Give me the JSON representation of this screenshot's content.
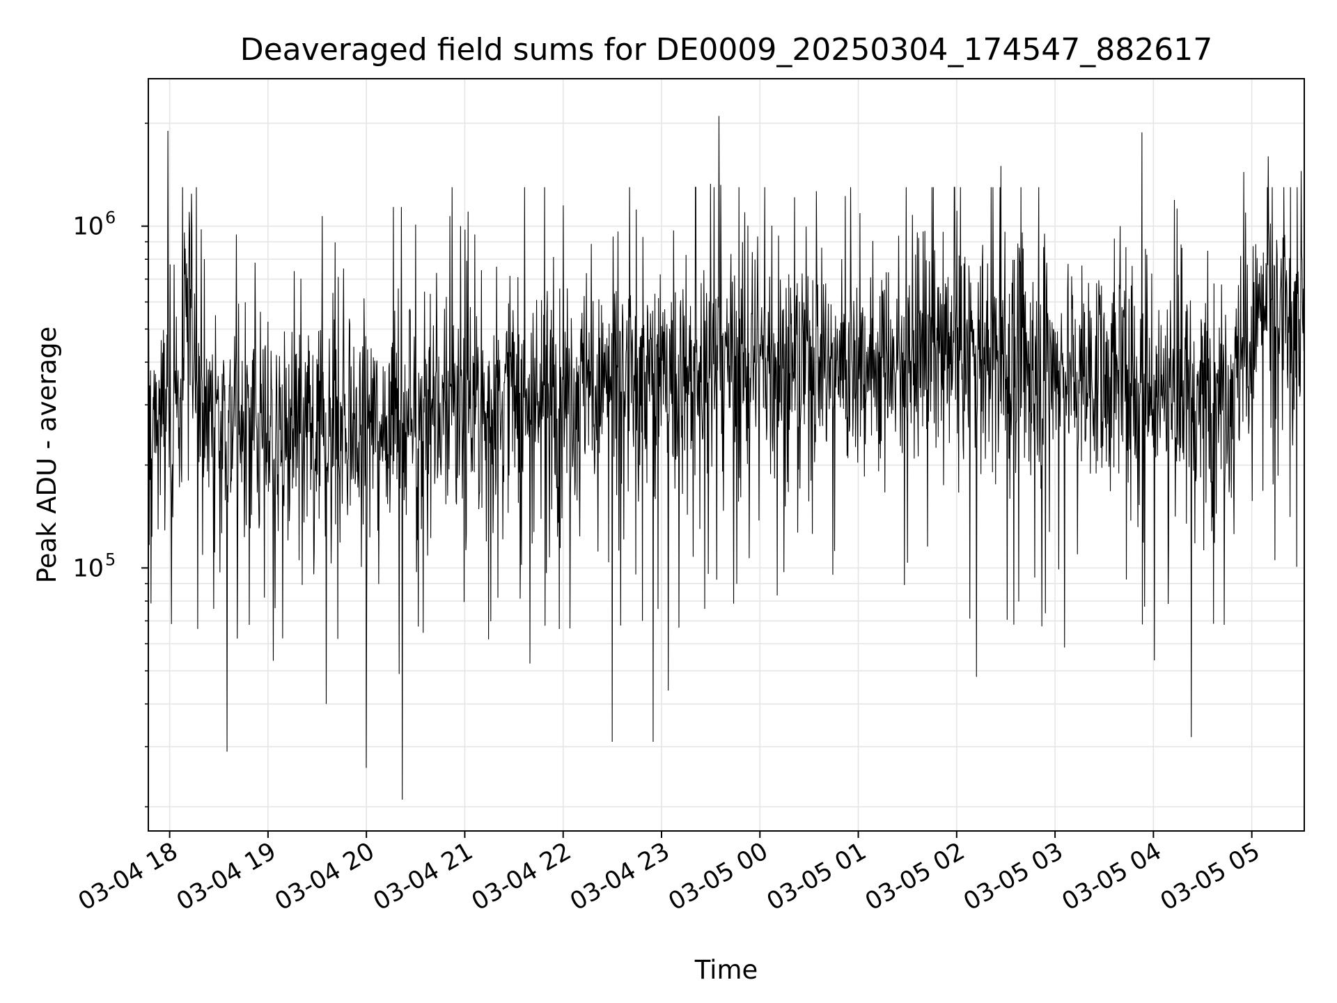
{
  "chart_data": {
    "type": "line",
    "title": "Deaveraged field sums for DE0009_20250304_174547_882617",
    "xlabel": "Time",
    "ylabel": "Peak ADU - average",
    "yscale": "log",
    "ylim": [
      17000,
      2700000
    ],
    "xlim": [
      "03-04 17:47",
      "03-05 05:32"
    ],
    "grid": true,
    "legend": "none",
    "line_color": "#000000",
    "y_ticks": [
      {
        "base": "10",
        "exp": "5",
        "value": 100000
      },
      {
        "base": "10",
        "exp": "6",
        "value": 1000000
      }
    ],
    "x_ticks": [
      "03-04 18",
      "03-04 19",
      "03-04 20",
      "03-04 21",
      "03-04 22",
      "03-04 23",
      "03-05 00",
      "03-05 01",
      "03-05 02",
      "03-05 03",
      "03-05 04",
      "03-05 05"
    ],
    "series": [
      {
        "values_note": "",
        "x_start": "03-04 17:47",
        "x_end": "03-05 05:32",
        "baseline_points": [
          {
            "x": "03-04 17:47",
            "y": 260000
          },
          {
            "x": "03-04 18:05",
            "y": 280000
          },
          {
            "x": "03-04 18:12",
            "y": 560000
          },
          {
            "x": "03-04 18:20",
            "y": 300000
          },
          {
            "x": "03-04 19:00",
            "y": 240000
          },
          {
            "x": "03-04 20:00",
            "y": 270000
          },
          {
            "x": "03-04 21:00",
            "y": 290000
          },
          {
            "x": "03-04 22:00",
            "y": 330000
          },
          {
            "x": "03-04 23:00",
            "y": 360000
          },
          {
            "x": "03-05 00:00",
            "y": 390000
          },
          {
            "x": "03-05 01:00",
            "y": 410000
          },
          {
            "x": "03-05 02:00",
            "y": 430000
          },
          {
            "x": "03-05 03:00",
            "y": 390000
          },
          {
            "x": "03-05 04:00",
            "y": 340000
          },
          {
            "x": "03-05 04:50",
            "y": 340000
          },
          {
            "x": "03-05 05:05",
            "y": 560000
          },
          {
            "x": "03-05 05:32",
            "y": 500000
          }
        ],
        "spikes": [
          {
            "x": "03-04 17:59",
            "y": 1900000
          },
          {
            "x": "03-04 18:12",
            "y": 1100000
          },
          {
            "x": "03-04 18:35",
            "y": 29000
          },
          {
            "x": "03-04 19:33",
            "y": 1070000
          },
          {
            "x": "03-04 20:00",
            "y": 26000
          },
          {
            "x": "03-04 20:22",
            "y": 21000
          },
          {
            "x": "03-04 20:30",
            "y": 1010000
          },
          {
            "x": "03-04 20:51",
            "y": 1070000
          },
          {
            "x": "03-04 22:00",
            "y": 1150000
          },
          {
            "x": "03-04 22:30",
            "y": 31000
          },
          {
            "x": "03-04 22:55",
            "y": 31000
          },
          {
            "x": "03-04 23:30",
            "y": 1330000
          },
          {
            "x": "03-04 23:35",
            "y": 2100000
          },
          {
            "x": "03-04 23:36",
            "y": 1320000
          },
          {
            "x": "03-05 02:12",
            "y": 48000
          },
          {
            "x": "03-05 02:27",
            "y": 1500000
          },
          {
            "x": "03-05 03:53",
            "y": 1880000
          },
          {
            "x": "03-05 04:23",
            "y": 32000
          },
          {
            "x": "03-05 04:55",
            "y": 1440000
          },
          {
            "x": "03-05 05:10",
            "y": 1600000
          },
          {
            "x": "03-05 05:30",
            "y": 1450000
          }
        ]
      }
    ]
  }
}
